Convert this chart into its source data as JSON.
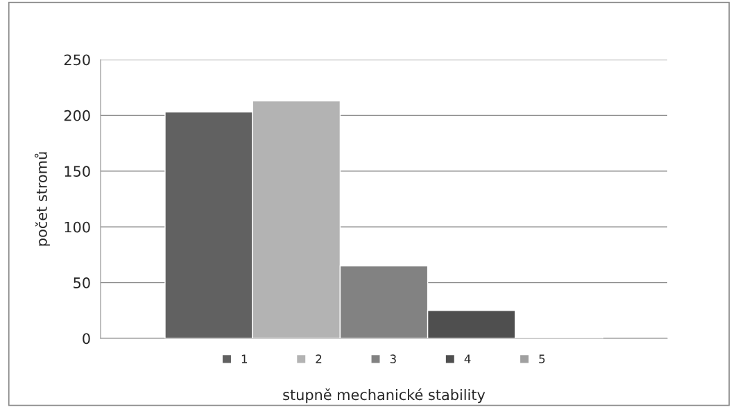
{
  "chart_data": {
    "type": "bar",
    "categories": [
      null
    ],
    "series": [
      {
        "name": "1",
        "color": "#616161",
        "values": [
          203
        ]
      },
      {
        "name": "2",
        "color": "#b3b3b3",
        "values": [
          213
        ]
      },
      {
        "name": "3",
        "color": "#828282",
        "values": [
          65
        ]
      },
      {
        "name": "4",
        "color": "#4f4f4f",
        "values": [
          25
        ]
      },
      {
        "name": "5",
        "color": "#a0a0a0",
        "values": [
          1
        ]
      }
    ],
    "xlabel": "stupně mechanické stability",
    "ylabel": "počet stromů",
    "ylim": [
      0,
      250
    ],
    "yticks": [
      0,
      50,
      100,
      150,
      200,
      250
    ],
    "grid": "y",
    "legend": "bottom",
    "tick_labels": "y"
  }
}
